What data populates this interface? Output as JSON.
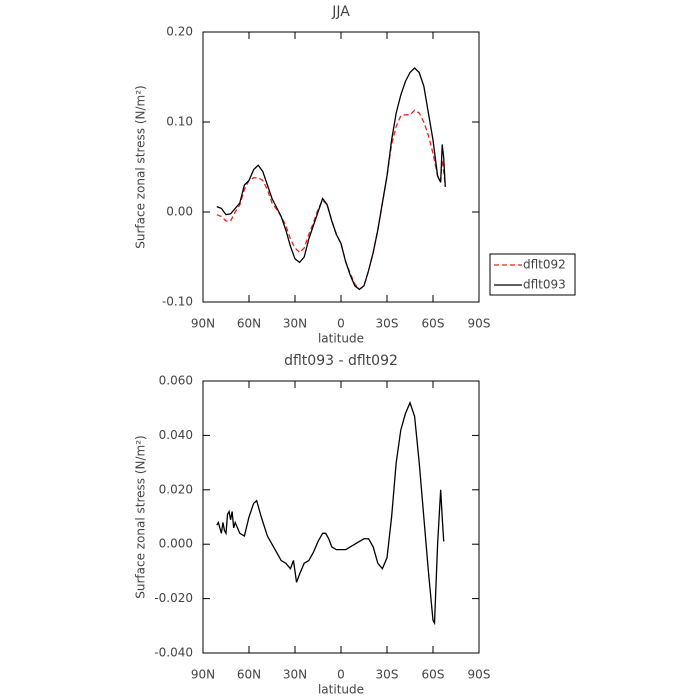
{
  "chart_data": [
    {
      "type": "line",
      "title": "JJA",
      "xlabel": "latitude",
      "ylabel": "Surface zonal stress (N/m²)",
      "xlim": [
        90,
        -90
      ],
      "ylim": [
        -0.1,
        0.2
      ],
      "xticks": [
        {
          "value": 90,
          "label": "90N"
        },
        {
          "value": 60,
          "label": "60N"
        },
        {
          "value": 30,
          "label": "30N"
        },
        0,
        {
          "value": -30,
          "label": "30S"
        },
        {
          "value": -60,
          "label": "60S"
        },
        {
          "value": -90,
          "label": "90S"
        }
      ],
      "yticks": [
        {
          "value": 0.2,
          "label": "0.20"
        },
        {
          "value": 0.1,
          "label": "0.10"
        },
        {
          "value": 0,
          "label": "0.00"
        },
        {
          "value": -0.1,
          "label": "-0.10"
        }
      ],
      "legend": "outside right",
      "x": [
        81,
        78,
        75,
        72,
        69,
        66,
        63,
        60,
        57,
        54,
        51,
        48,
        45,
        42,
        39,
        36,
        33,
        30,
        27,
        24,
        21,
        18,
        15,
        12,
        9,
        6,
        3,
        0,
        -3,
        -6,
        -9,
        -12,
        -15,
        -18,
        -21,
        -24,
        -27,
        -30,
        -33,
        -36,
        -39,
        -42,
        -45,
        -48,
        -51,
        -54,
        -57,
        -60,
        -63,
        -65,
        -66,
        -67,
        -68
      ],
      "series": [
        {
          "name": "dflt092",
          "color": "#e8231f",
          "linestyle": "dashed",
          "values": [
            -0.003,
            -0.005,
            -0.01,
            -0.01,
            0.0,
            0.008,
            0.025,
            0.035,
            0.038,
            0.038,
            0.035,
            0.025,
            0.01,
            0.003,
            -0.005,
            -0.015,
            -0.03,
            -0.04,
            -0.045,
            -0.04,
            -0.025,
            -0.012,
            0.003,
            0.013,
            0.008,
            -0.01,
            -0.025,
            -0.035,
            -0.055,
            -0.068,
            -0.08,
            -0.086,
            -0.082,
            -0.065,
            -0.045,
            -0.02,
            0.01,
            0.04,
            0.075,
            0.095,
            0.107,
            0.108,
            0.108,
            0.113,
            0.11,
            0.1,
            0.085,
            0.065,
            0.04,
            0.035,
            0.058,
            0.045,
            0.028
          ]
        },
        {
          "name": "dflt093",
          "color": "#000000",
          "linestyle": "solid",
          "values": [
            0.006,
            0.004,
            -0.003,
            -0.002,
            0.004,
            0.01,
            0.03,
            0.035,
            0.047,
            0.052,
            0.045,
            0.03,
            0.015,
            0.005,
            -0.005,
            -0.02,
            -0.038,
            -0.052,
            -0.056,
            -0.05,
            -0.03,
            -0.015,
            0.0,
            0.015,
            0.008,
            -0.01,
            -0.025,
            -0.035,
            -0.055,
            -0.07,
            -0.082,
            -0.086,
            -0.082,
            -0.065,
            -0.045,
            -0.02,
            0.01,
            0.04,
            0.08,
            0.11,
            0.13,
            0.145,
            0.155,
            0.16,
            0.155,
            0.14,
            0.11,
            0.08,
            0.04,
            0.033,
            0.075,
            0.06,
            0.028
          ]
        }
      ]
    },
    {
      "type": "line",
      "title": "dflt093 - dflt092",
      "xlabel": "latitude",
      "ylabel": "Surface zonal stress (N/m²)",
      "xlim": [
        90,
        -90
      ],
      "ylim": [
        -0.04,
        0.06
      ],
      "xticks": [
        {
          "value": 90,
          "label": "90N"
        },
        {
          "value": 60,
          "label": "60N"
        },
        {
          "value": 30,
          "label": "30N"
        },
        0,
        {
          "value": -30,
          "label": "30S"
        },
        {
          "value": -60,
          "label": "60S"
        },
        {
          "value": -90,
          "label": "90S"
        }
      ],
      "yticks": [
        {
          "value": 0.06,
          "label": "0.060"
        },
        {
          "value": 0.04,
          "label": "0.040"
        },
        {
          "value": 0.02,
          "label": "0.020"
        },
        {
          "value": 0,
          "label": "0.000"
        },
        {
          "value": -0.02,
          "label": "-0.020"
        },
        {
          "value": -0.04,
          "label": "-0.040"
        }
      ],
      "x": [
        81,
        80,
        79,
        78,
        77,
        76,
        75,
        74,
        73,
        72,
        71,
        70,
        69,
        66,
        63,
        60,
        57,
        55,
        52,
        48,
        45,
        42,
        39,
        36,
        33,
        31,
        29,
        27,
        24,
        21,
        18,
        15,
        12,
        10,
        8,
        6,
        3,
        0,
        -3,
        -6,
        -9,
        -12,
        -15,
        -18,
        -21,
        -24,
        -27,
        -30,
        -33,
        -36,
        -39,
        -42,
        -45,
        -48,
        -51,
        -54,
        -57,
        -60,
        -61,
        -63,
        -64,
        -65,
        -66,
        -67
      ],
      "series": [
        {
          "color": "#000000",
          "linestyle": "solid",
          "values": [
            0.007,
            0.008,
            0.006,
            0.004,
            0.008,
            0.005,
            0.004,
            0.011,
            0.012,
            0.009,
            0.012,
            0.006,
            0.008,
            0.004,
            0.003,
            0.01,
            0.015,
            0.016,
            0.01,
            0.003,
            0.0,
            -0.003,
            -0.006,
            -0.007,
            -0.009,
            -0.006,
            -0.014,
            -0.011,
            -0.007,
            -0.006,
            -0.003,
            0.001,
            0.004,
            0.004,
            0.002,
            -0.001,
            -0.002,
            -0.002,
            -0.002,
            -0.001,
            0.0,
            0.001,
            0.002,
            0.002,
            -0.001,
            -0.007,
            -0.009,
            -0.005,
            0.01,
            0.03,
            0.042,
            0.048,
            0.052,
            0.047,
            0.03,
            0.01,
            -0.01,
            -0.028,
            -0.029,
            0.0,
            0.01,
            0.02,
            0.01,
            0.001
          ]
        }
      ]
    }
  ]
}
